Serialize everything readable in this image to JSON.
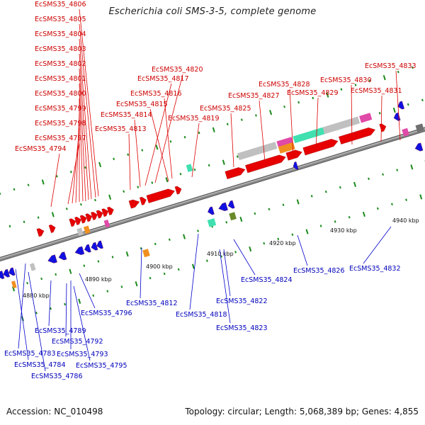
{
  "title": "Escherichia coli SMS-3-5, complete genome",
  "footer": {
    "accession": "Accession: NC_010498",
    "topology": "Topology: circular; Length: 5,068,389 bp; Genes: 4,855"
  },
  "colors": {
    "forward_gene": "#e60000",
    "reverse_gene": "#1010e0",
    "leader_red": "#dd0000",
    "leader_blue": "#0000cc",
    "tick": "#1a8a1a",
    "backbone": "#8a8a8a"
  },
  "scale_labels": [
    "4880 kbp",
    "4890 kbp",
    "4900 kbp",
    "4910 kbp",
    "4920 kbp",
    "4930 kbp",
    "4940 kbp"
  ],
  "top_labels": [
    "EcSMS35_4806",
    "EcSMS35_4805",
    "EcSMS35_4804",
    "EcSMS35_4803",
    "EcSMS35_4802",
    "EcSMS35_4801",
    "EcSMS35_4800",
    "EcSMS35_4799",
    "EcSMS35_4798",
    "EcSMS35_4797",
    "EcSMS35_4794",
    "EcSMS35_4820",
    "EcSMS35_4817",
    "EcSMS35_4816",
    "EcSMS35_4815",
    "EcSMS35_4814",
    "EcSMS35_4813",
    "EcSMS35_4819",
    "EcSMS35_4825",
    "EcSMS35_4828",
    "EcSMS35_4827",
    "EcSMS35_4829",
    "EcSMS35_4830",
    "EcSMS35_4831",
    "EcSMS35_4833"
  ],
  "bottom_labels": [
    "EcSMS35_4812",
    "EcSMS35_4796",
    "EcSMS35_4789",
    "EcSMS35_4792",
    "EcSMS35_4793",
    "EcSMS35_4783",
    "EcSMS35_4795",
    "EcSMS35_4784",
    "EcSMS35_4786",
    "EcSMS35_4818",
    "EcSMS35_4822",
    "EcSMS35_4823",
    "EcSMS35_4824",
    "EcSMS35_4826",
    "EcSMS35_4832"
  ]
}
